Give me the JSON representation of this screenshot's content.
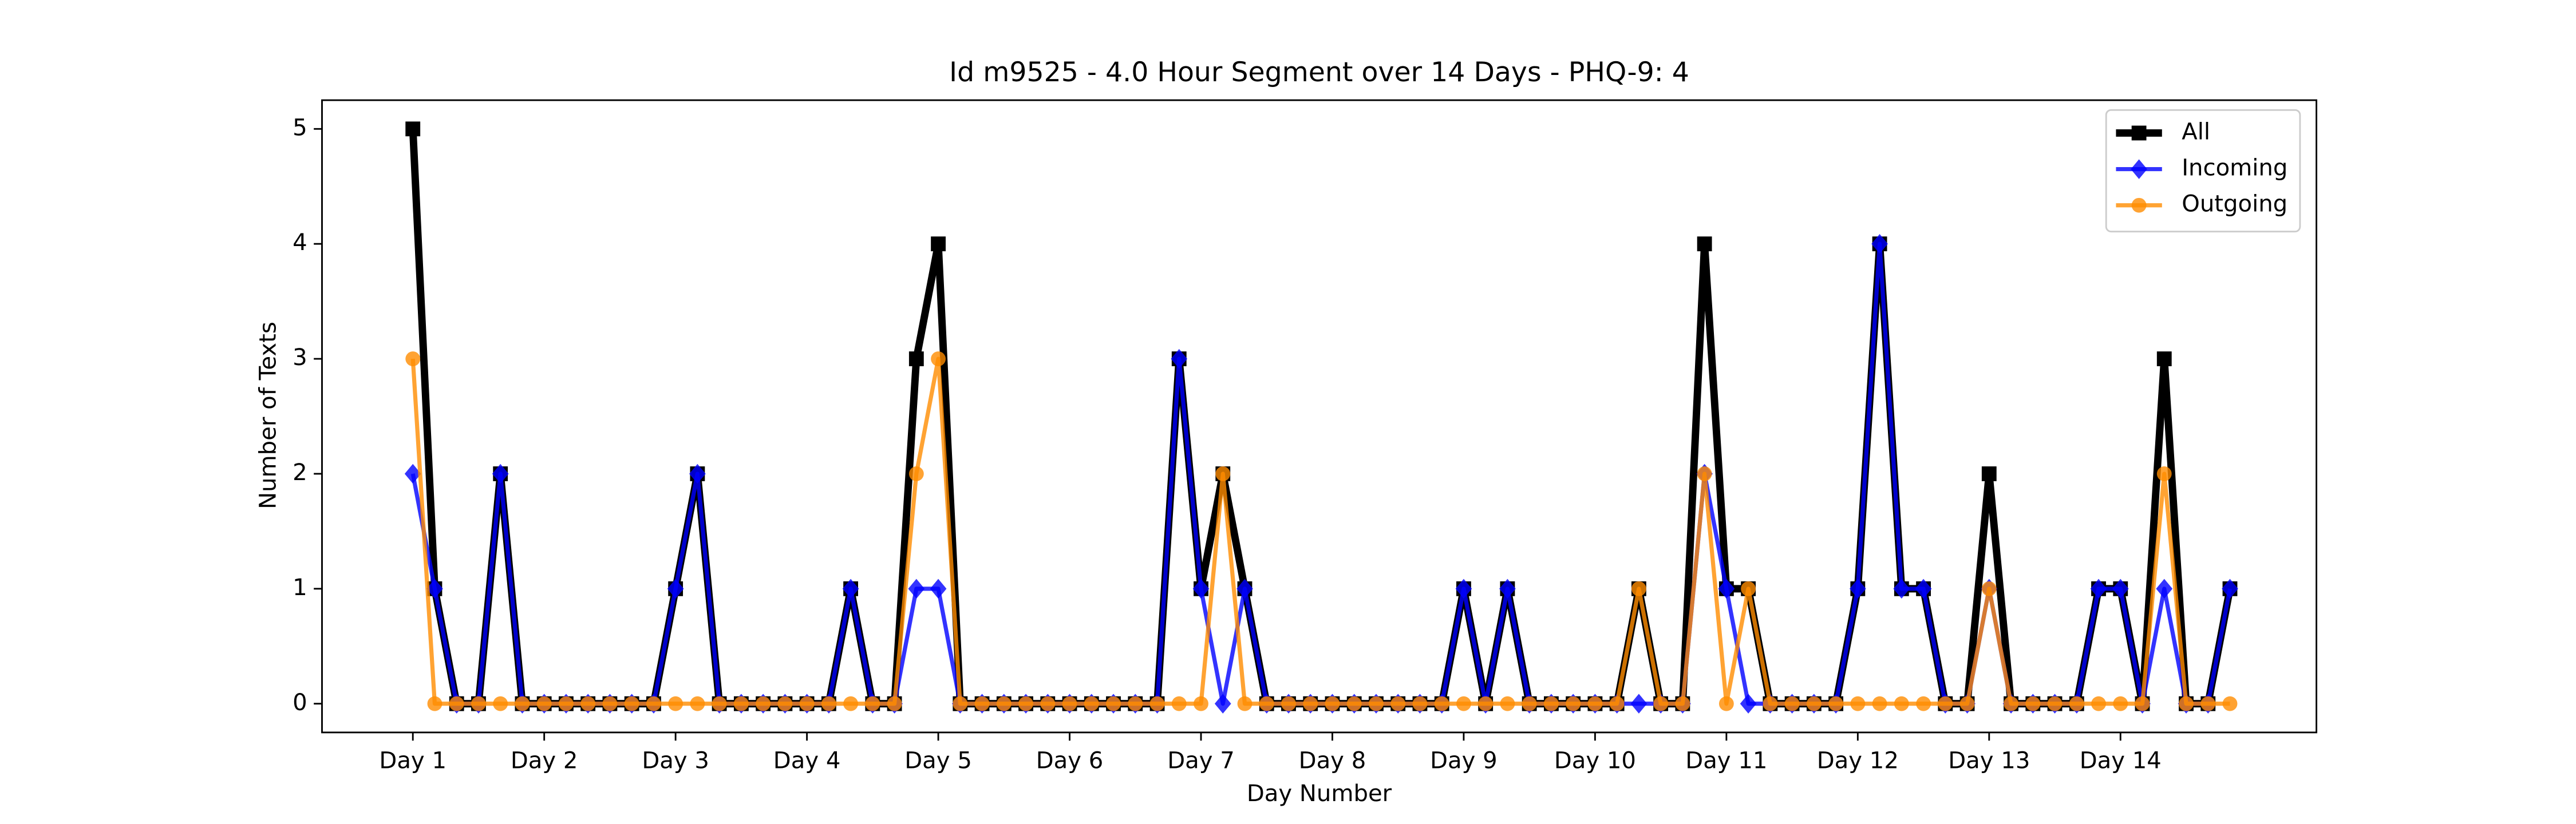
{
  "chart_data": {
    "type": "line",
    "title": "Id m9525 - 4.0 Hour Segment over 14 Days - PHQ-9: 4",
    "xlabel": "Day Number",
    "ylabel": "Number of Texts",
    "x": [
      0,
      1,
      2,
      3,
      4,
      5,
      6,
      7,
      8,
      9,
      10,
      11,
      12,
      13,
      14,
      15,
      16,
      17,
      18,
      19,
      20,
      21,
      22,
      23,
      24,
      25,
      26,
      27,
      28,
      29,
      30,
      31,
      32,
      33,
      34,
      35,
      36,
      37,
      38,
      39,
      40,
      41,
      42,
      43,
      44,
      45,
      46,
      47,
      48,
      49,
      50,
      51,
      52,
      53,
      54,
      55,
      56,
      57,
      58,
      59,
      60,
      61,
      62,
      63,
      64,
      65,
      66,
      67,
      68,
      69,
      70,
      71,
      72,
      73,
      74,
      75,
      76,
      77,
      78,
      79,
      80,
      81,
      82,
      83
    ],
    "series": [
      {
        "name": "All",
        "color": "#000000",
        "marker": "square",
        "values": [
          5,
          1,
          0,
          0,
          2,
          0,
          0,
          0,
          0,
          0,
          0,
          0,
          1,
          2,
          0,
          0,
          0,
          0,
          0,
          0,
          1,
          0,
          0,
          3,
          4,
          0,
          0,
          0,
          0,
          0,
          0,
          0,
          0,
          0,
          0,
          3,
          1,
          2,
          1,
          0,
          0,
          0,
          0,
          0,
          0,
          0,
          0,
          0,
          1,
          0,
          1,
          0,
          0,
          0,
          0,
          0,
          1,
          0,
          0,
          4,
          1,
          1,
          0,
          0,
          0,
          0,
          1,
          4,
          1,
          1,
          0,
          0,
          2,
          0,
          0,
          0,
          0,
          1,
          1,
          0,
          3,
          0,
          0,
          1
        ]
      },
      {
        "name": "Incoming",
        "color": "#0000ff",
        "marker": "diamond",
        "values": [
          2,
          1,
          0,
          0,
          2,
          0,
          0,
          0,
          0,
          0,
          0,
          0,
          1,
          2,
          0,
          0,
          0,
          0,
          0,
          0,
          1,
          0,
          0,
          1,
          1,
          0,
          0,
          0,
          0,
          0,
          0,
          0,
          0,
          0,
          0,
          3,
          1,
          0,
          1,
          0,
          0,
          0,
          0,
          0,
          0,
          0,
          0,
          0,
          1,
          0,
          1,
          0,
          0,
          0,
          0,
          0,
          0,
          0,
          0,
          2,
          1,
          0,
          0,
          0,
          0,
          0,
          1,
          4,
          1,
          1,
          0,
          0,
          1,
          0,
          0,
          0,
          0,
          1,
          1,
          0,
          1,
          0,
          0,
          1
        ]
      },
      {
        "name": "Outgoing",
        "color": "#ff8c00",
        "marker": "circle",
        "values": [
          3,
          0,
          0,
          0,
          0,
          0,
          0,
          0,
          0,
          0,
          0,
          0,
          0,
          0,
          0,
          0,
          0,
          0,
          0,
          0,
          0,
          0,
          0,
          2,
          3,
          0,
          0,
          0,
          0,
          0,
          0,
          0,
          0,
          0,
          0,
          0,
          0,
          2,
          0,
          0,
          0,
          0,
          0,
          0,
          0,
          0,
          0,
          0,
          0,
          0,
          0,
          0,
          0,
          0,
          0,
          0,
          1,
          0,
          0,
          2,
          0,
          1,
          0,
          0,
          0,
          0,
          0,
          0,
          0,
          0,
          0,
          0,
          1,
          0,
          0,
          0,
          0,
          0,
          0,
          0,
          2,
          0,
          0,
          0
        ]
      }
    ],
    "xlim": [
      -4.15,
      86.95
    ],
    "xticks": [
      {
        "value": 0,
        "label": "Day 1"
      },
      {
        "value": 6,
        "label": "Day 2"
      },
      {
        "value": 12,
        "label": "Day 3"
      },
      {
        "value": 18,
        "label": "Day 4"
      },
      {
        "value": 24,
        "label": "Day 5"
      },
      {
        "value": 30,
        "label": "Day 6"
      },
      {
        "value": 36,
        "label": "Day 7"
      },
      {
        "value": 42,
        "label": "Day 8"
      },
      {
        "value": 48,
        "label": "Day 9"
      },
      {
        "value": 54,
        "label": "Day 10"
      },
      {
        "value": 60,
        "label": "Day 11"
      },
      {
        "value": 66,
        "label": "Day 12"
      },
      {
        "value": 72,
        "label": "Day 13"
      },
      {
        "value": 78,
        "label": "Day 14"
      }
    ],
    "ylim": [
      -0.25,
      5.25
    ],
    "yticks": [
      0,
      1,
      2,
      3,
      4,
      5
    ],
    "grid": false,
    "legend": "upper right"
  }
}
